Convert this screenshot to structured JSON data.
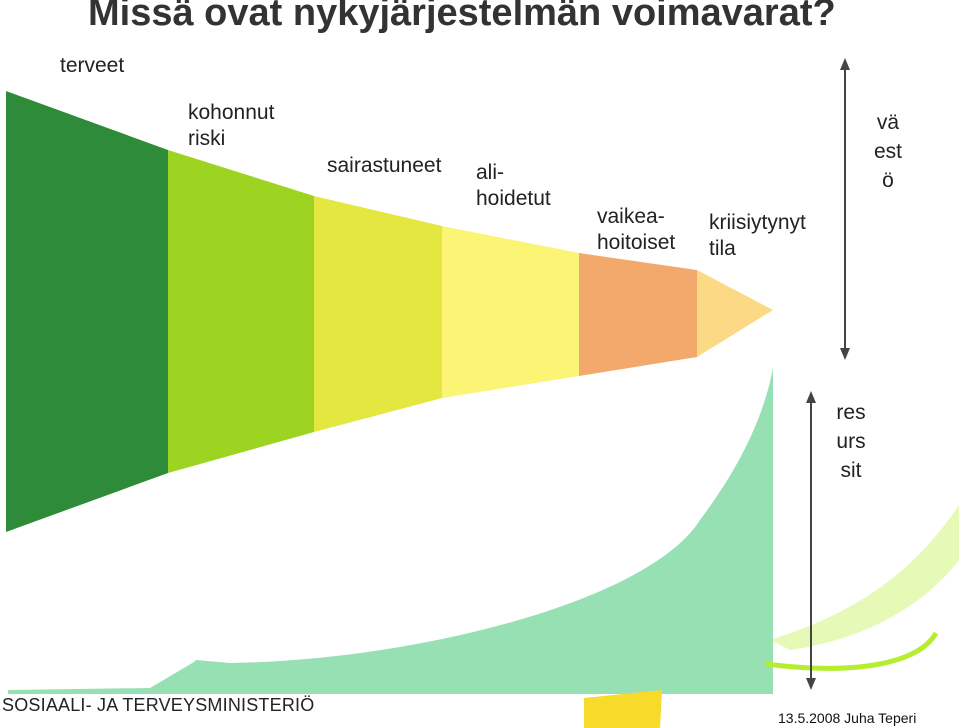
{
  "title": "Missä ovat nykyjärjestelmän voimavarat?",
  "stages": [
    {
      "label": "terveet",
      "color": "#2e8b39"
    },
    {
      "label": "kohonnut\nriski",
      "color": "#9dd321"
    },
    {
      "label": "sairastuneet",
      "color": "#e3e740"
    },
    {
      "label": "ali-\nhoidetut",
      "color": "#fcf475"
    },
    {
      "label": "vaikea-\nhoitoiset",
      "color": "#f4a96c"
    },
    {
      "label": "kriisiytynyt\ntila",
      "color": "#fbd985"
    }
  ],
  "population_label": "väestö",
  "resources_label": "resurssit",
  "resources_color": "#97e0b3",
  "accent_color": "#b6ee2f",
  "footer": {
    "organization": "SOSIAALI- JA TERVEYSMINISTERIÖ",
    "date_author": "13.5.2008  Juha Teperi"
  }
}
